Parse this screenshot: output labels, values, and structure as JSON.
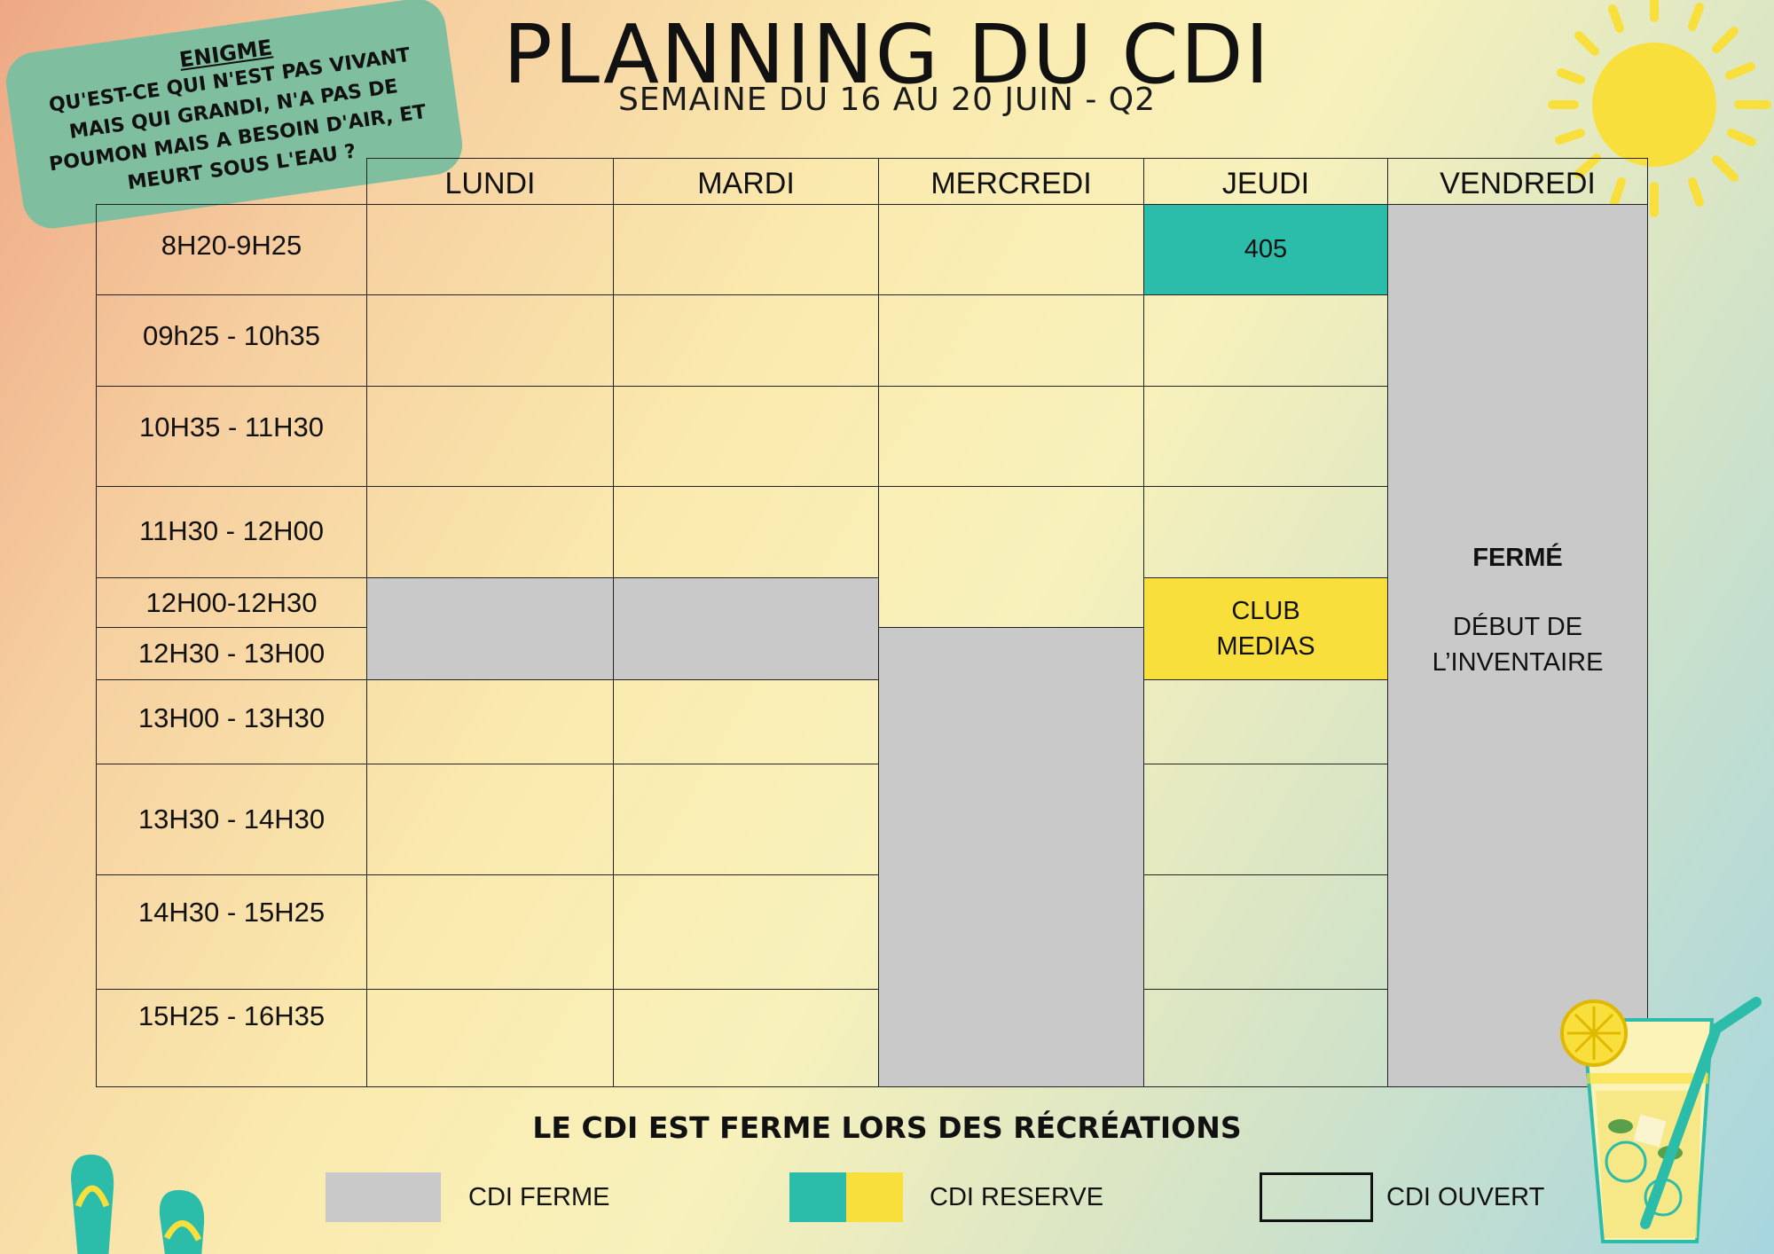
{
  "title": "PLANNING DU CDI",
  "subtitle": "SEMAINE DU 16 AU 20 JUIN - Q2",
  "enigme": {
    "heading": "ENIGME",
    "text": "QU'EST-CE QUI N'EST PAS VIVANT MAIS QUI GRANDI, N'A PAS DE POUMON MAIS A BESOIN D'AIR, ET MEURT SOUS L'EAU ?"
  },
  "days": [
    "LUNDI",
    "MARDI",
    "MERCREDI",
    "JEUDI",
    "VENDREDI"
  ],
  "times": [
    "8H20-9H25",
    "09h25 - 10h35",
    "10H35 - 11H30",
    "11H30 - 12H00",
    "12H00-12H30",
    "12H30 - 13H00",
    "13H00 - 13H30",
    "13H30 - 14H30",
    "14H30 - 15H25",
    "15H25 - 16H35"
  ],
  "events": {
    "jeudi_first": "405",
    "club_line1": "CLUB",
    "club_line2": "MEDIAS",
    "vendredi_status": "FERMÉ",
    "vendredi_line1": "DÉBUT DE",
    "vendredi_line2": "L’INVENTAIRE"
  },
  "notice": "LE CDI EST FERME LORS DES RÉCRÉATIONS",
  "legend": {
    "closed": "CDI FERME",
    "reserved": "CDI RESERVE",
    "open": "CDI OUVERT"
  },
  "colors": {
    "closed": "#c9c9c9",
    "reserved_teal": "#2cbcaa",
    "reserved_yellow": "#f9df3c",
    "enigme_bg": "#7fbf9f"
  },
  "icons": [
    "sun-icon",
    "lemonade-glass-icon",
    "flip-flops-icon"
  ]
}
